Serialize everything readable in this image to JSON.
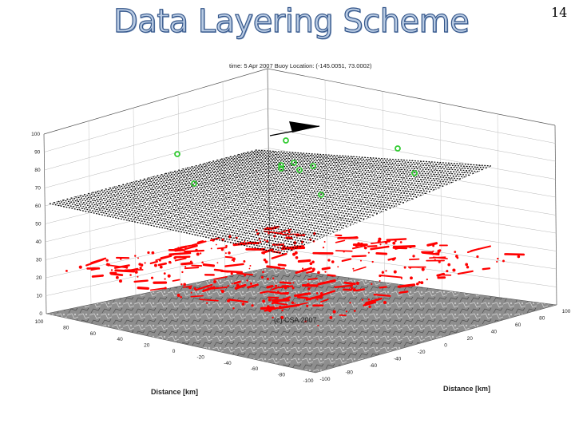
{
  "slide": {
    "title": "Data Layering Scheme",
    "page_number": "14"
  },
  "figure": {
    "header": "time: 5 Apr 2007    Buoy Location: (-145.0051, 73.0002)",
    "watermark": "(c) CSA 2007",
    "z_ticks": [
      "100",
      "90",
      "80",
      "70",
      "60",
      "50",
      "40",
      "30",
      "20",
      "10",
      "0"
    ],
    "x_ticks": [
      "100",
      "80",
      "60",
      "40",
      "20",
      "0",
      "-20",
      "-40",
      "-60",
      "-80",
      "-100"
    ],
    "y_ticks": [
      "100",
      "80",
      "60",
      "40",
      "20",
      "0",
      "-20",
      "-40",
      "-60",
      "-80",
      "-100"
    ],
    "x_axis_label": "Distance [km]",
    "y_axis_label": "Distance [km]",
    "colors": {
      "points": "#33cc33",
      "tracks": "#ff0000",
      "mesh": "#000000",
      "title_fill": "#b9cbe3",
      "title_stroke": "#34568a"
    }
  }
}
